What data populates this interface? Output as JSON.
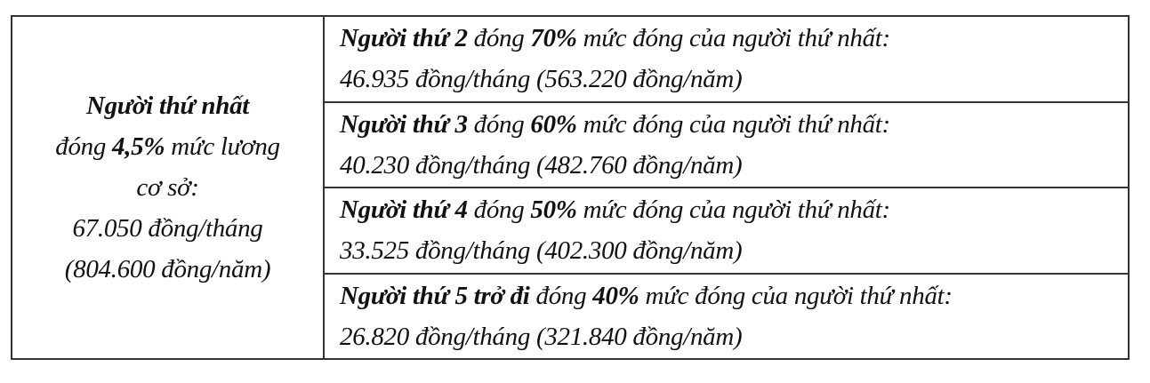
{
  "left": {
    "line1": "Người thứ nhất",
    "line2_a": "đóng ",
    "line2_b": "4,5%",
    "line2_c": " mức lương",
    "line3": "cơ sở:",
    "line4": "67.050 đồng/tháng",
    "line5": "(804.600 đồng/năm)"
  },
  "rows": [
    {
      "who": "Người thứ 2",
      "mid": " đóng ",
      "pct": "70%",
      "rest": " mức đóng của người thứ nhất:",
      "amount": "46.935 đồng/tháng (563.220 đồng/năm)"
    },
    {
      "who": "Người thứ 3",
      "mid": " đóng ",
      "pct": "60%",
      "rest": " mức đóng của người thứ nhất:",
      "amount": "40.230 đồng/tháng (482.760 đồng/năm)"
    },
    {
      "who": "Người thứ 4",
      "mid": " đóng ",
      "pct": "50%",
      "rest": " mức đóng của người thứ nhất:",
      "amount": "33.525 đồng/tháng (402.300 đồng/năm)"
    },
    {
      "who": "Người thứ 5 trở đi",
      "mid": " đóng ",
      "pct": "40%",
      "rest": " mức đóng của người thứ nhất:",
      "amount": "26.820 đồng/tháng (321.840 đồng/năm)"
    }
  ]
}
